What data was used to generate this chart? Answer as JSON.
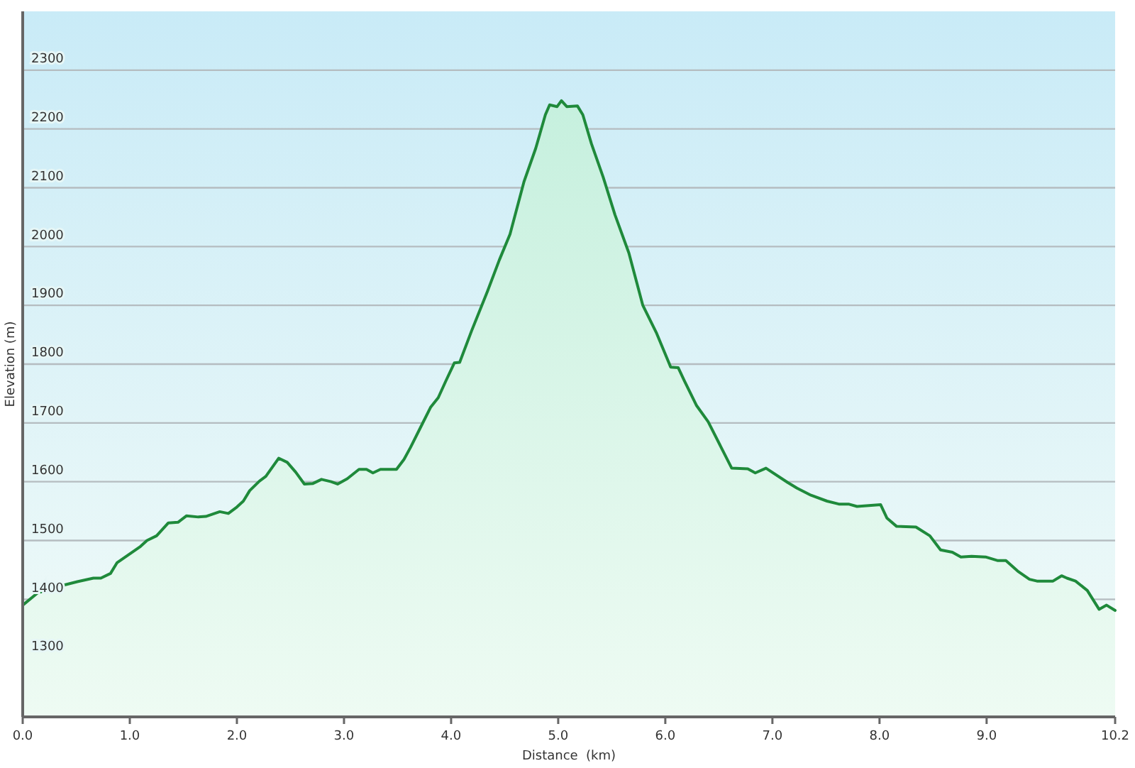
{
  "chart_data": {
    "type": "area",
    "xlabel": "Distance  (km)",
    "ylabel": "Elevation (m)",
    "xlim": [
      0,
      10.2
    ],
    "ylim": [
      1200,
      2400
    ],
    "xticks": [
      {
        "value": 0,
        "label": "0.0"
      },
      {
        "value": 1,
        "label": "1.0"
      },
      {
        "value": 2,
        "label": "2.0"
      },
      {
        "value": 3,
        "label": "3.0"
      },
      {
        "value": 4,
        "label": "4.0"
      },
      {
        "value": 5,
        "label": "5.0"
      },
      {
        "value": 6,
        "label": "6.0"
      },
      {
        "value": 7,
        "label": "7.0"
      },
      {
        "value": 8,
        "label": "8.0"
      },
      {
        "value": 9,
        "label": "9.0"
      },
      10.2
    ],
    "yticks": [
      1300,
      1400,
      1500,
      1600,
      1700,
      1800,
      1900,
      2000,
      2100,
      2200,
      2300
    ],
    "grid": "y",
    "series": [
      {
        "color": "#1f8a3b",
        "x": [
          0,
          0.14,
          0.36,
          0.51,
          0.66,
          0.73,
          0.82,
          0.88,
          0.99,
          1.1,
          1.16,
          1.25,
          1.36,
          1.45,
          1.53,
          1.64,
          1.71,
          1.84,
          1.92,
          2.0,
          2.06,
          2.12,
          2.21,
          2.27,
          2.39,
          2.47,
          2.55,
          2.63,
          2.71,
          2.79,
          2.88,
          2.94,
          3.03,
          3.14,
          3.21,
          3.27,
          3.34,
          3.49,
          3.56,
          3.62,
          3.73,
          3.81,
          3.88,
          3.95,
          4.03,
          4.08,
          4.19,
          4.34,
          4.45,
          4.55,
          4.68,
          4.79,
          4.88,
          4.92,
          4.99,
          5.03,
          5.08,
          5.18,
          5.23,
          5.31,
          5.42,
          5.53,
          5.66,
          5.79,
          5.92,
          6.05,
          6.12,
          6.18,
          6.29,
          6.4,
          6.62,
          6.77,
          6.84,
          6.94,
          7.14,
          7.23,
          7.36,
          7.51,
          7.62,
          7.71,
          7.79,
          8.01,
          8.07,
          8.16,
          8.34,
          8.47,
          8.57,
          8.68,
          8.76,
          8.86,
          8.99,
          9.1,
          9.18,
          9.29,
          9.4,
          9.47,
          9.62,
          9.7,
          9.75,
          9.83,
          9.94,
          10.05,
          10.12,
          10.2
        ],
        "values": [
          1390,
          1411,
          1423,
          1430,
          1436,
          1436,
          1444,
          1462,
          1476,
          1490,
          1500,
          1508,
          1530,
          1531,
          1542,
          1540,
          1541,
          1549,
          1546,
          1557,
          1567,
          1585,
          1601,
          1609,
          1640,
          1633,
          1616,
          1596,
          1597,
          1604,
          1600,
          1596,
          1605,
          1621,
          1621,
          1615,
          1621,
          1621,
          1638,
          1658,
          1698,
          1727,
          1743,
          1771,
          1802,
          1803,
          1856,
          1924,
          1977,
          2021,
          2110,
          2167,
          2224,
          2241,
          2238,
          2248,
          2238,
          2239,
          2224,
          2175,
          2118,
          2054,
          1989,
          1900,
          1852,
          1795,
          1794,
          1771,
          1730,
          1702,
          1623,
          1622,
          1615,
          1623,
          1599,
          1589,
          1577,
          1567,
          1562,
          1562,
          1558,
          1561,
          1538,
          1524,
          1523,
          1508,
          1484,
          1480,
          1472,
          1473,
          1472,
          1466,
          1466,
          1448,
          1434,
          1431,
          1431,
          1440,
          1436,
          1431,
          1415,
          1383,
          1390,
          1381
        ]
      }
    ]
  }
}
